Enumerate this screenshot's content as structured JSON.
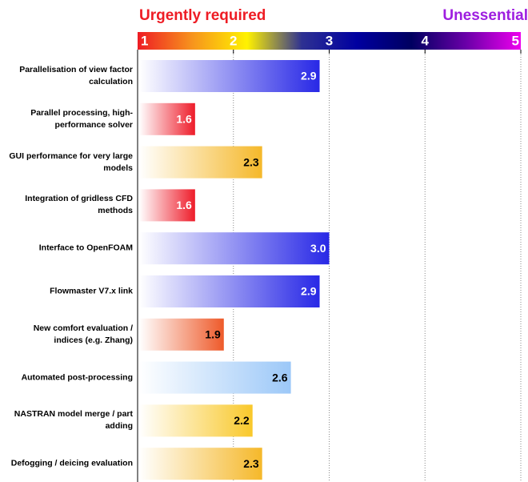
{
  "chart_data": {
    "type": "bar",
    "orientation": "horizontal",
    "low_label": "Urgently required",
    "high_label": "Unessential",
    "low_color": "#ee1c24",
    "high_color": "#9e1ee0",
    "scale_colors": [
      "#ee1c24",
      "#f7941d",
      "#fff200",
      "#2e3192",
      "#0000a0",
      "#000060",
      "#6a00a8",
      "#ee00ee"
    ],
    "categories": [
      "Parallelisation of view factor calculation",
      "Parallel processing, high-performance solver",
      "GUI performance for very large models",
      "Integration of gridless CFD methods",
      "Interface to OpenFOAM",
      "Flowmaster V7.x link",
      "New comfort evaluation / indices (e.g. Zhang)",
      "Automated post-processing",
      "NASTRAN model merge / part adding",
      "Defogging / deicing evaluation"
    ],
    "values": [
      2.9,
      1.6,
      2.3,
      1.6,
      3.0,
      2.9,
      1.9,
      2.6,
      2.2,
      2.3
    ],
    "value_labels": [
      "2.9",
      "1.6",
      "2.3",
      "1.6",
      "3.0",
      "2.9",
      "1.9",
      "2.6",
      "2.2",
      "2.3"
    ],
    "colors": [
      "#2828e6",
      "#ee1c2a",
      "#f5b82a",
      "#ee1c2a",
      "#2828e6",
      "#2828e6",
      "#ee5a2a",
      "#9cc8f8",
      "#f9c82a",
      "#f5b82a"
    ],
    "xlim": [
      1,
      5
    ],
    "xticks": [
      1,
      2,
      3,
      4,
      5
    ],
    "grid": true
  }
}
